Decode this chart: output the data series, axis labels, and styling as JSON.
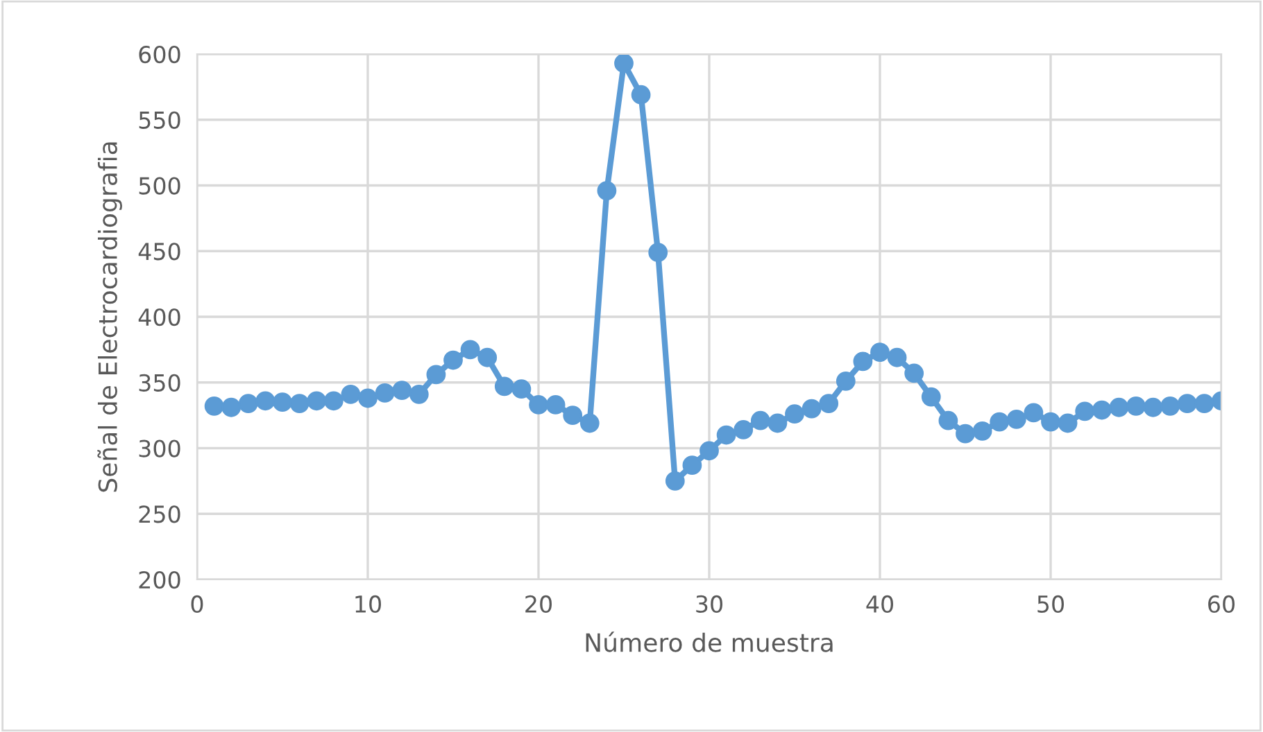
{
  "chart_data": {
    "type": "line",
    "xlabel": "Número de muestra",
    "ylabel": "Señal de Electrocardiografia",
    "x": [
      1,
      2,
      3,
      4,
      5,
      6,
      7,
      8,
      9,
      10,
      11,
      12,
      13,
      14,
      15,
      16,
      17,
      18,
      19,
      20,
      21,
      22,
      23,
      24,
      25,
      26,
      27,
      28,
      29,
      30,
      31,
      32,
      33,
      34,
      35,
      36,
      37,
      38,
      39,
      40,
      41,
      42,
      43,
      44,
      45,
      46,
      47,
      48,
      49,
      50,
      51,
      52,
      53,
      54,
      55,
      56,
      57,
      58,
      59,
      60
    ],
    "series": [
      {
        "color": "#5b9bd5",
        "values": [
          332,
          331,
          334,
          336,
          335,
          334,
          336,
          336,
          341,
          338,
          342,
          344,
          341,
          356,
          367,
          375,
          369,
          347,
          345,
          333,
          333,
          325,
          319,
          496,
          593,
          569,
          449,
          275,
          287,
          298,
          310,
          314,
          321,
          319,
          326,
          330,
          334,
          351,
          366,
          373,
          369,
          357,
          339,
          321,
          311,
          313,
          320,
          322,
          327,
          320,
          319,
          328,
          329,
          331,
          332,
          331,
          332,
          334,
          334,
          336
        ]
      }
    ],
    "xlim": [
      0,
      60
    ],
    "xticks": [
      0,
      10,
      20,
      30,
      40,
      50,
      60
    ],
    "ylim": [
      200,
      600
    ],
    "yticks": [
      200,
      250,
      300,
      350,
      400,
      450,
      500,
      550,
      600
    ],
    "grid": true,
    "marker": "circle",
    "line_style": "solid"
  }
}
